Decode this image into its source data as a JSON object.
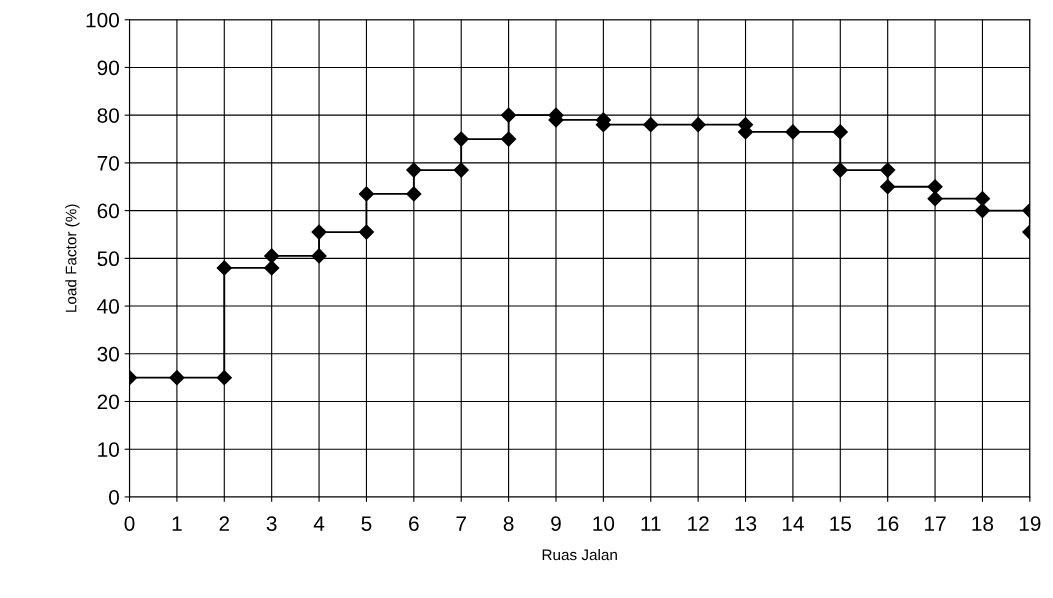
{
  "chart_data": {
    "type": "line",
    "xlabel": "Ruas Jalan",
    "ylabel": "Load Factor (%)",
    "x": [
      0,
      1,
      2,
      2,
      3,
      3,
      4,
      4,
      5,
      5,
      6,
      6,
      7,
      7,
      8,
      8,
      9,
      9,
      10,
      10,
      11,
      12,
      13,
      13,
      14,
      15,
      15,
      16,
      16,
      17,
      17,
      18,
      18,
      19,
      19
    ],
    "series": [
      {
        "color": "#000000",
        "values": [
          25,
          25,
          25,
          48,
          48,
          50.5,
          50.5,
          55.5,
          55.5,
          63.5,
          63.5,
          68.5,
          68.5,
          75,
          75,
          80,
          80,
          79,
          79,
          78,
          78,
          78,
          78,
          76.5,
          76.5,
          76.5,
          68.5,
          68.5,
          65,
          65,
          62.5,
          62.5,
          60,
          60,
          55.5
        ]
      }
    ],
    "xlim": [
      0,
      19
    ],
    "xticks": [
      0,
      1,
      2,
      3,
      4,
      5,
      6,
      7,
      8,
      9,
      10,
      11,
      12,
      13,
      14,
      15,
      16,
      17,
      18,
      19
    ],
    "ylim": [
      0,
      100
    ],
    "yticks": [
      0,
      10,
      20,
      30,
      40,
      50,
      60,
      70,
      80,
      90,
      100
    ],
    "grid": true,
    "marker": "diamond",
    "line_style": "solid"
  }
}
